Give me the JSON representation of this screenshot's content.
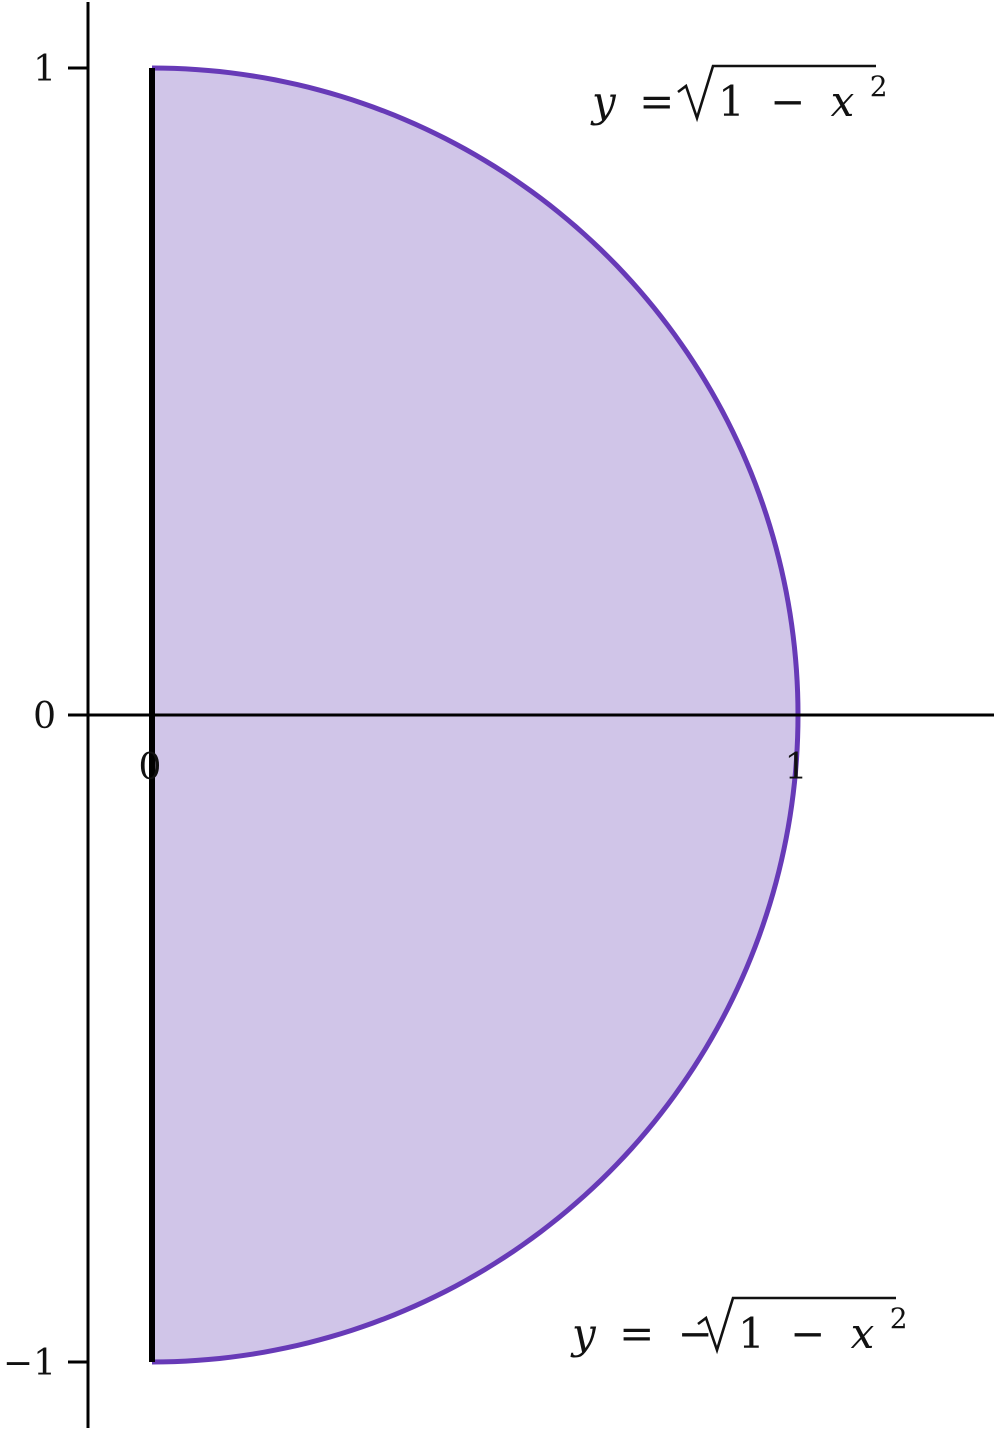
{
  "colors": {
    "region_fill": "#d0c5e8",
    "curve": "#673ab7",
    "axis": "#000000"
  },
  "axes": {
    "x_range": [
      -0.1,
      1.3
    ],
    "y_range": [
      -1.1,
      1.1
    ],
    "y_ticks": [
      {
        "value": 1,
        "label": "1"
      },
      {
        "value": 0,
        "label": "0"
      },
      {
        "value": -1,
        "label": "−1"
      }
    ],
    "x_ticks": [
      {
        "value": 0,
        "label": "0"
      },
      {
        "value": 1,
        "label": "1"
      }
    ]
  },
  "curves": {
    "upper": {
      "equation": "y = √(1 − x²)",
      "lhs": "y",
      "eq": "=",
      "neg": "",
      "root_one": "1",
      "minus": "−",
      "var_x": "x",
      "exponent": "2"
    },
    "lower": {
      "equation": "y = −√(1 − x²)",
      "lhs": "y",
      "eq": "=",
      "neg": "−",
      "root_one": "1",
      "minus": "−",
      "var_x": "x",
      "exponent": "2"
    }
  },
  "region": {
    "x_from": 0,
    "x_to": 1
  }
}
